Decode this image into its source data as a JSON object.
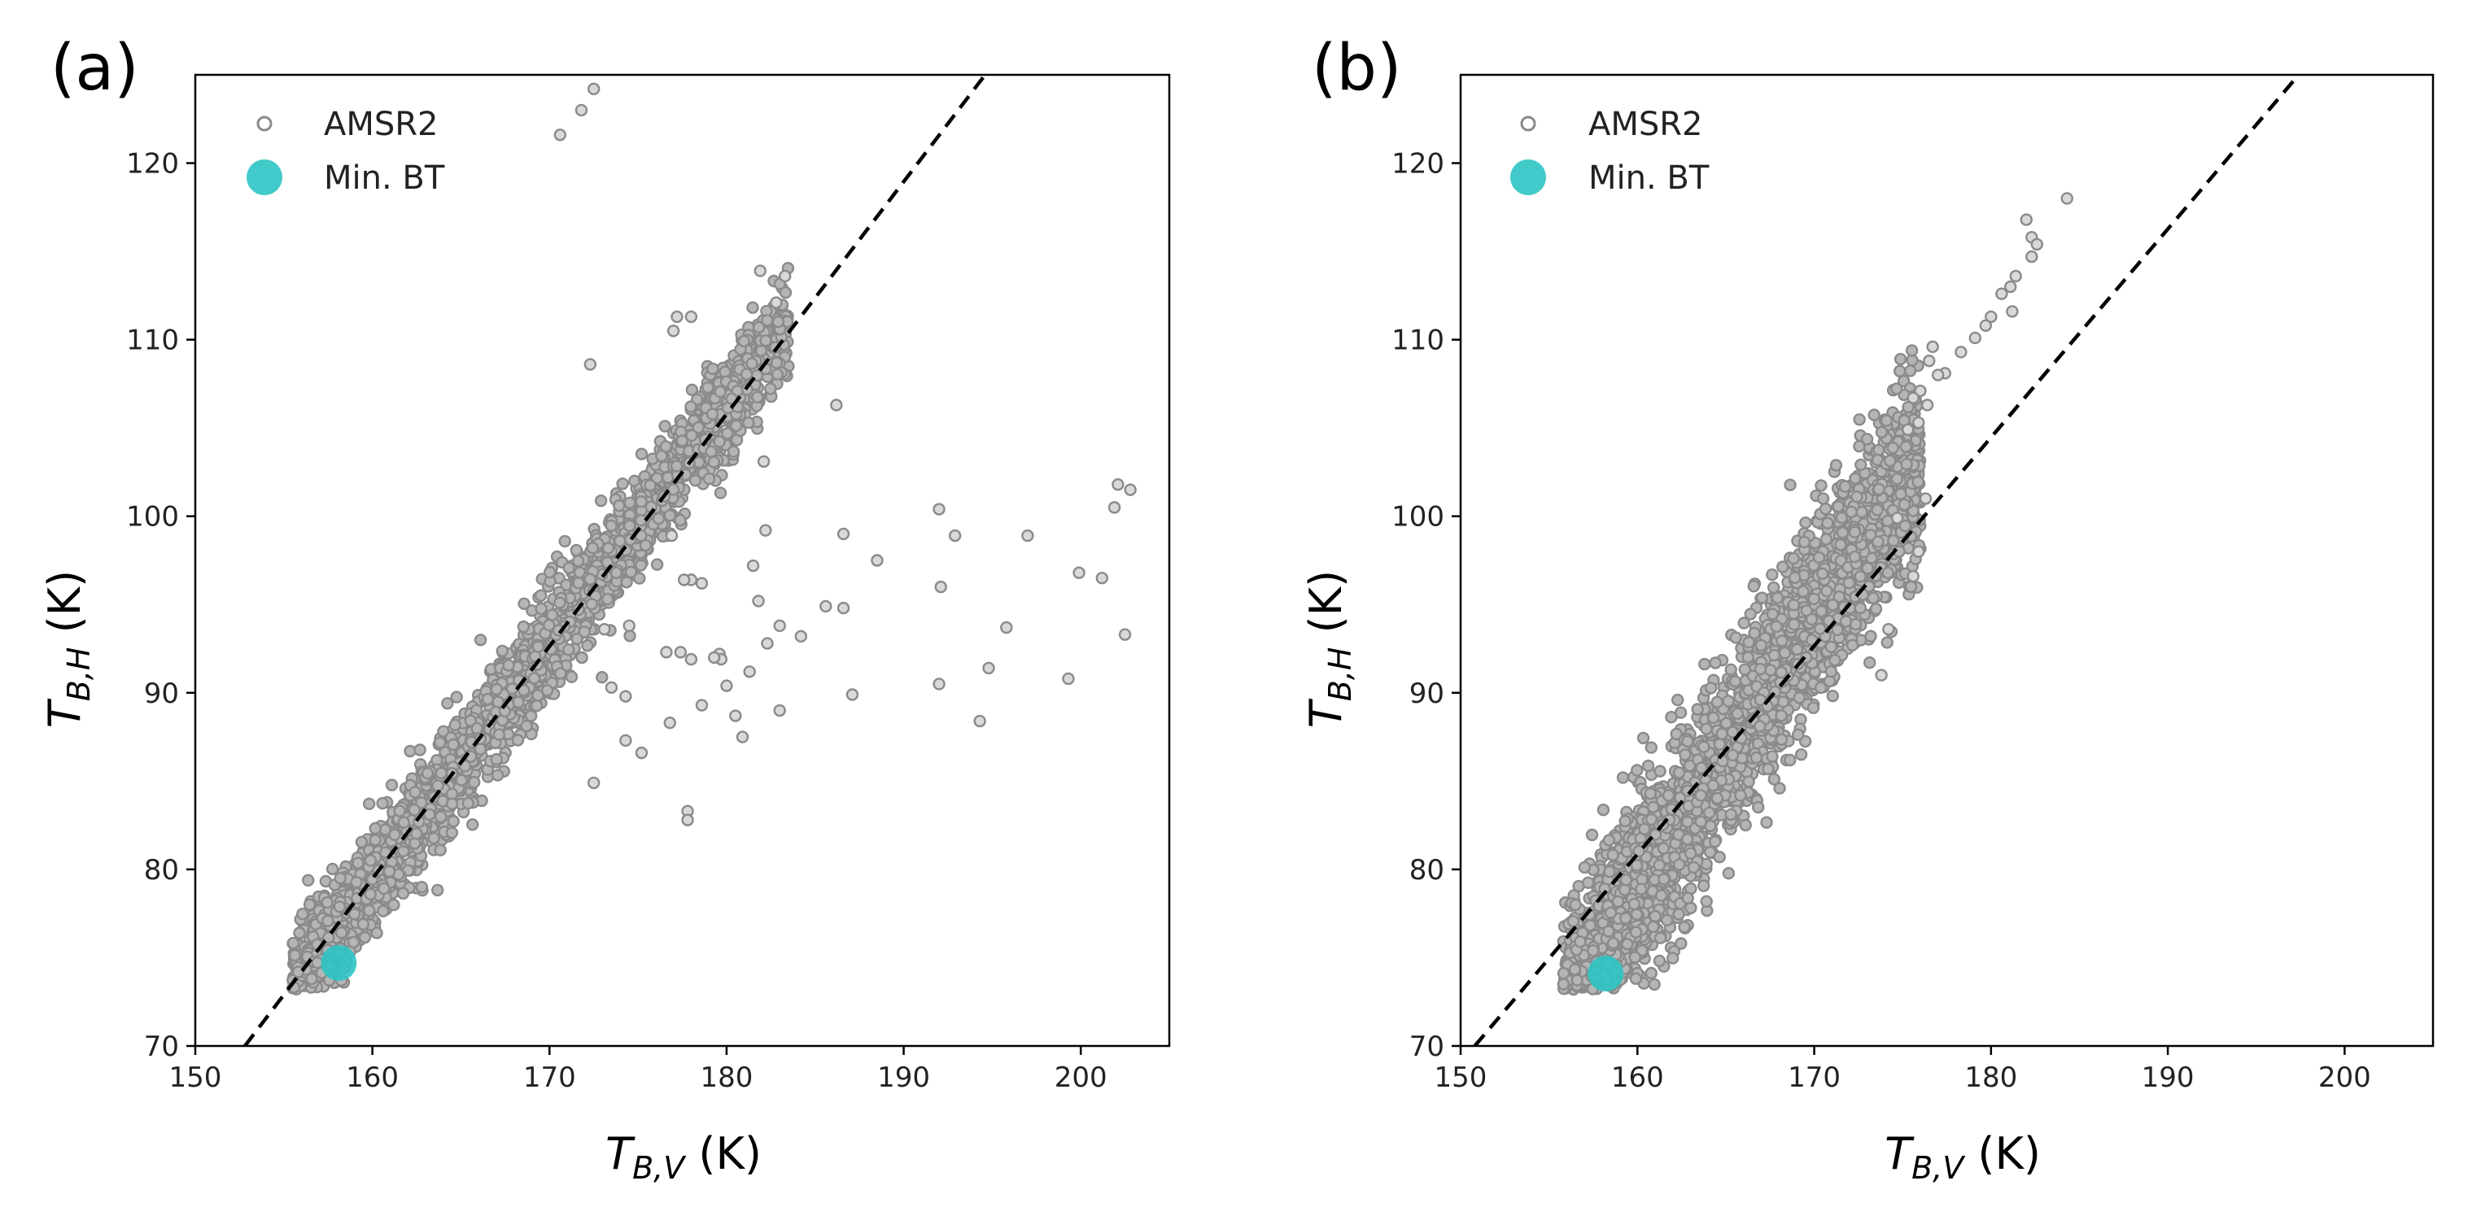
{
  "chart_data": [
    {
      "type": "scatter",
      "panel_label": "(a)",
      "xlabel": {
        "main": "T",
        "sub": "B,V",
        "unit": " (K)"
      },
      "ylabel": {
        "main": "T",
        "sub": "B,H",
        "unit": " (K)"
      },
      "xlim": [
        150,
        205
      ],
      "ylim": [
        70,
        125
      ],
      "xticks": [
        "150",
        "160",
        "170",
        "180",
        "190",
        "200"
      ],
      "yticks": [
        "70",
        "80",
        "90",
        "100",
        "110",
        "120"
      ],
      "legend": {
        "position": "top-left",
        "entries": [
          "AMSR2",
          "Min. BT"
        ]
      },
      "colors": {
        "points": "#8a8a8a",
        "min_bt": "#2ec4c4",
        "line": "#000000"
      },
      "dashed_line": {
        "x": [
          152.8,
          194.6
        ],
        "y": [
          70,
          125
        ]
      },
      "cloud": {
        "center_slope": 1.35,
        "center_offset": 76.0,
        "x_range": [
          155.5,
          183.5
        ],
        "width": 2.6,
        "count": 2600
      },
      "series": [
        {
          "name": "AMSR2",
          "points": [
            [
              172.5,
              124.2
            ],
            [
              171.8,
              123.0
            ],
            [
              170.6,
              121.6
            ],
            [
              172.3,
              108.6
            ],
            [
              177.2,
              111.3
            ],
            [
              178.0,
              111.3
            ],
            [
              177.0,
              110.5
            ],
            [
              181.9,
              113.9
            ],
            [
              182.8,
              112.1
            ],
            [
              183.3,
              113.6
            ],
            [
              186.2,
              106.3
            ],
            [
              182.1,
              103.1
            ],
            [
              182.2,
              99.2
            ],
            [
              181.5,
              97.2
            ],
            [
              186.6,
              99.0
            ],
            [
              188.5,
              97.5
            ],
            [
              192.0,
              100.4
            ],
            [
              192.9,
              98.9
            ],
            [
              197.0,
              98.9
            ],
            [
              202.1,
              101.8
            ],
            [
              202.8,
              101.5
            ],
            [
              201.9,
              100.5
            ],
            [
              199.9,
              96.8
            ],
            [
              201.2,
              96.5
            ],
            [
              185.6,
              94.9
            ],
            [
              186.6,
              94.8
            ],
            [
              192.1,
              96.0
            ],
            [
              195.8,
              93.7
            ],
            [
              183.0,
              93.8
            ],
            [
              184.2,
              93.2
            ],
            [
              182.3,
              92.8
            ],
            [
              181.8,
              95.2
            ],
            [
              178.0,
              96.4
            ],
            [
              177.6,
              96.4
            ],
            [
              179.6,
              92.2
            ],
            [
              179.7,
              91.9
            ],
            [
              180.0,
              90.4
            ],
            [
              181.3,
              91.2
            ],
            [
              183.0,
              89.0
            ],
            [
              187.1,
              89.9
            ],
            [
              180.5,
              88.7
            ],
            [
              180.9,
              87.5
            ],
            [
              178.6,
              89.3
            ],
            [
              178.0,
              91.9
            ],
            [
              176.6,
              92.3
            ],
            [
              177.4,
              92.3
            ],
            [
              176.8,
              88.3
            ],
            [
              192.0,
              90.5
            ],
            [
              194.8,
              91.4
            ],
            [
              194.3,
              88.4
            ],
            [
              199.3,
              90.8
            ],
            [
              202.5,
              93.3
            ],
            [
              172.5,
              84.9
            ],
            [
              177.8,
              83.3
            ],
            [
              177.8,
              82.8
            ],
            [
              174.3,
              89.8
            ],
            [
              173.5,
              90.3
            ],
            [
              174.3,
              87.3
            ],
            [
              173.1,
              93.6
            ],
            [
              174.5,
              93.8
            ],
            [
              178.6,
              96.2
            ],
            [
              176.9,
              98.9
            ],
            [
              179.3,
              92.0
            ],
            [
              175.2,
              86.6
            ]
          ]
        },
        {
          "name": "Min. BT",
          "points": [
            [
              158.1,
              74.7
            ]
          ]
        }
      ]
    },
    {
      "type": "scatter",
      "panel_label": "(b)",
      "xlabel": {
        "main": "T",
        "sub": "B,V",
        "unit": " (K)"
      },
      "ylabel": {
        "main": "T",
        "sub": "B,H",
        "unit": " (K)"
      },
      "xlim": [
        150,
        205
      ],
      "ylim": [
        70,
        125
      ],
      "xticks": [
        "150",
        "160",
        "170",
        "180",
        "190",
        "200"
      ],
      "yticks": [
        "70",
        "80",
        "90",
        "100",
        "110",
        "120"
      ],
      "legend": {
        "position": "top-left",
        "entries": [
          "AMSR2",
          "Min. BT"
        ]
      },
      "colors": {
        "points": "#8a8a8a",
        "min_bt": "#2ec4c4",
        "line": "#000000"
      },
      "dashed_line": {
        "x": [
          150.8,
          197.4
        ],
        "y": [
          70,
          125
        ]
      },
      "cloud": {
        "center_slope": 1.55,
        "center_offset": 75.0,
        "x_range": [
          155.8,
          176.0
        ],
        "width": 4.6,
        "count": 3200
      },
      "series": [
        {
          "name": "AMSR2",
          "points": [
            [
              184.3,
              118.0
            ],
            [
              182.0,
              116.8
            ],
            [
              182.3,
              115.8
            ],
            [
              182.6,
              115.4
            ],
            [
              182.3,
              114.7
            ],
            [
              181.4,
              113.6
            ],
            [
              181.1,
              113.0
            ],
            [
              180.6,
              112.6
            ],
            [
              181.2,
              111.6
            ],
            [
              180.0,
              111.3
            ],
            [
              179.7,
              110.8
            ],
            [
              179.1,
              110.1
            ],
            [
              178.3,
              109.3
            ],
            [
              177.4,
              108.1
            ],
            [
              177.0,
              108.0
            ],
            [
              176.7,
              109.6
            ],
            [
              176.5,
              108.8
            ],
            [
              176.0,
              107.1
            ],
            [
              175.6,
              106.7
            ],
            [
              176.4,
              106.3
            ],
            [
              175.9,
              105.3
            ],
            [
              175.3,
              104.9
            ],
            [
              176.3,
              101.0
            ],
            [
              175.9,
              98.0
            ],
            [
              175.6,
              96.6
            ],
            [
              174.7,
              99.9
            ],
            [
              174.2,
              93.6
            ],
            [
              173.8,
              91.0
            ]
          ]
        },
        {
          "name": "Min. BT",
          "points": [
            [
              158.2,
              74.1
            ]
          ]
        }
      ]
    }
  ]
}
